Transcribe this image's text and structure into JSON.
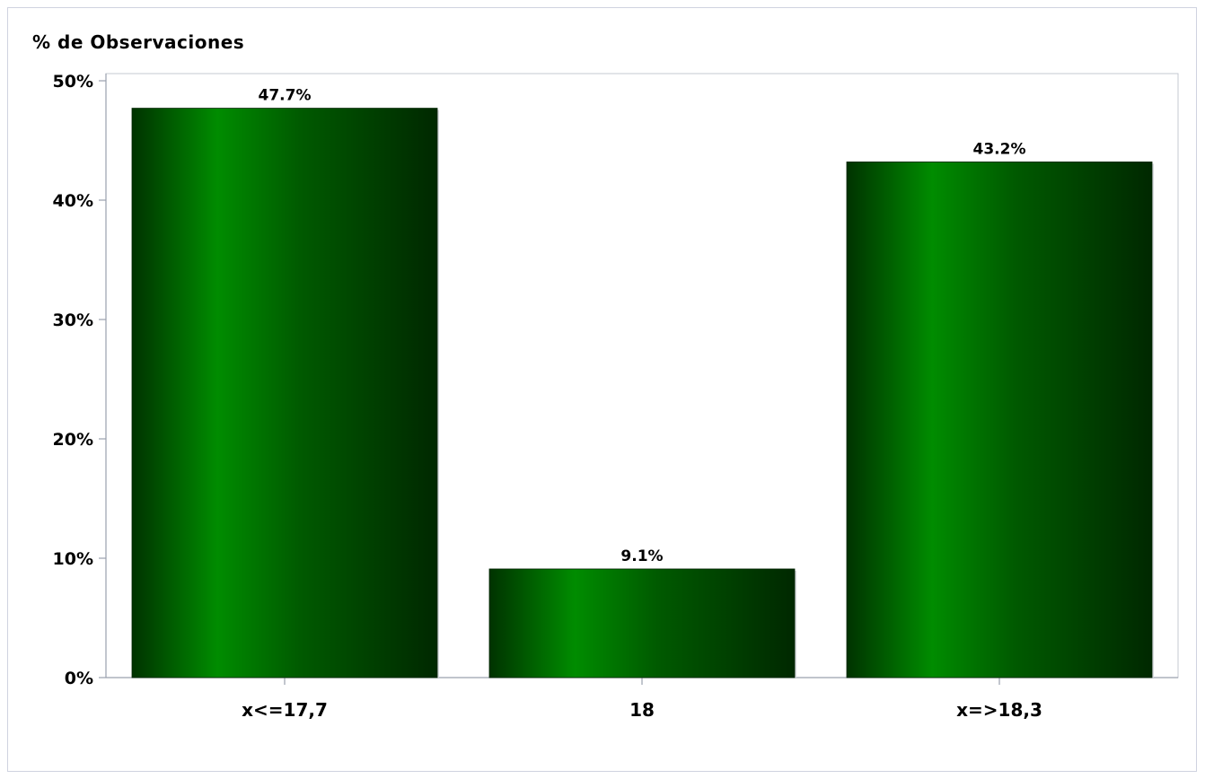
{
  "chart_data": {
    "type": "bar",
    "title": "",
    "ylabel": "% de Observaciones",
    "xlabel": "",
    "categories": [
      "x<=17,7",
      "18",
      "x=>18,3"
    ],
    "values": [
      47.7,
      9.1,
      43.2
    ],
    "data_labels": [
      "47.7%",
      "9.1%",
      "43.2%"
    ],
    "ylim": [
      0,
      50
    ],
    "yticks": [
      0,
      10,
      20,
      30,
      40,
      50
    ],
    "ytick_labels": [
      "0%",
      "10%",
      "20%",
      "30%",
      "40%",
      "50%"
    ],
    "grid": false,
    "legend": "none",
    "colors": {
      "bar_dark": "#003300",
      "bar_light": "#008c00",
      "axis": "#9aa0ad"
    }
  }
}
